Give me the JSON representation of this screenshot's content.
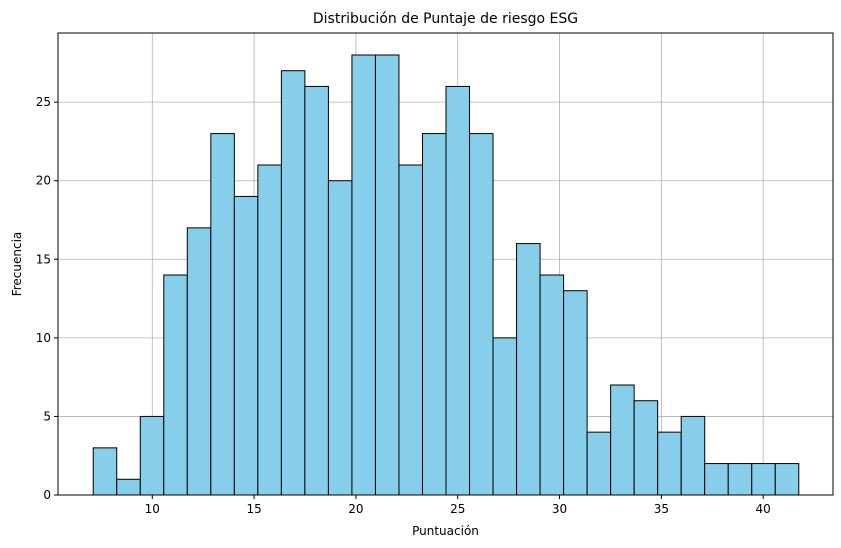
{
  "chart_data": {
    "type": "bar",
    "title": "Distribución de Puntaje de riesgo ESG",
    "xlabel": "Puntuación",
    "ylabel": "Frecuencia",
    "bin_start": 7.1,
    "bin_width": 1.155,
    "values": [
      3,
      1,
      5,
      14,
      17,
      23,
      19,
      21,
      27,
      26,
      20,
      28,
      28,
      21,
      23,
      26,
      23,
      10,
      16,
      14,
      13,
      4,
      7,
      6,
      4,
      5,
      2,
      2,
      2,
      2
    ],
    "xlim": [
      5.37,
      43.43
    ],
    "ylim": [
      0,
      29.4
    ],
    "xticks": [
      10,
      15,
      20,
      25,
      30,
      35,
      40
    ],
    "yticks": [
      0,
      5,
      10,
      15,
      20,
      25
    ],
    "grid": true,
    "bar_color": "#87ceeb",
    "edge_color": "#000000"
  }
}
